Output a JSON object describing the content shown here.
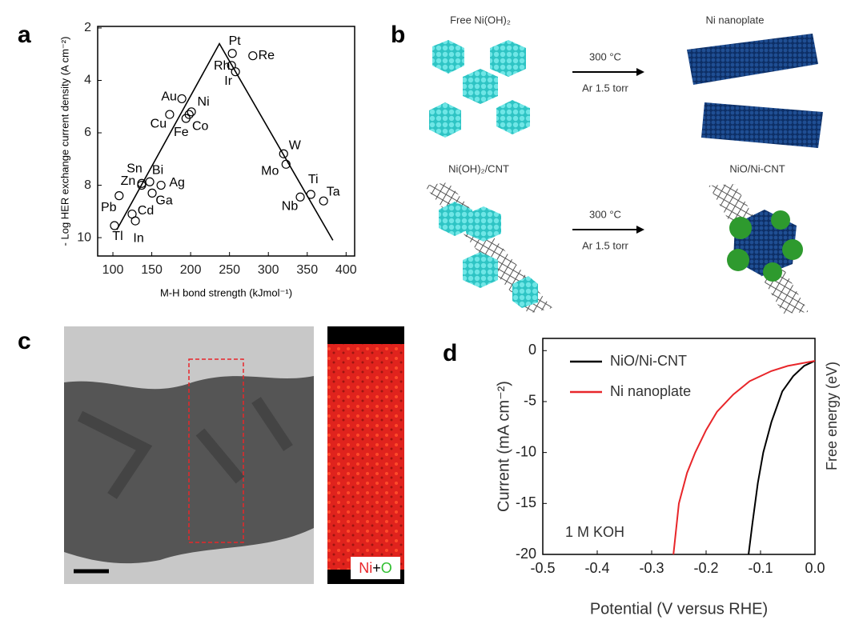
{
  "panels": {
    "a": "a",
    "b": "b",
    "c": "c",
    "d": "d"
  },
  "scheme": {
    "free": "Free Ni(OH)₂",
    "nanoplate": "Ni nanoplate",
    "temp_top": "300 °C",
    "gas_top": "Ar 1.5 torr",
    "cnt": "Ni(OH)₂/CNT",
    "nio": "NiO/Ni-CNT",
    "temp_bottom": "300 °C",
    "gas_bottom": "Ar 1.5 torr"
  },
  "map_legend": [
    "Ni",
    "+",
    "O"
  ],
  "chart_data": [
    {
      "type": "scatter",
      "xlabel": "M-H bond strength (kJmol⁻¹)",
      "ylabel": "- Log HER exchange current density (A cm⁻²)",
      "labels": [
        "Pt",
        "Re",
        "Rh",
        "Ir",
        "Au",
        "Ni",
        "Cu",
        "Co",
        "Fe",
        "W",
        "Mo",
        "Sn",
        "Bi",
        "Zn",
        "Ag",
        "Ga",
        "Pb",
        "Cd",
        "In",
        "Tl",
        "Ti",
        "Nb",
        "Ta"
      ],
      "x": [
        253.6,
        280,
        252.6,
        257.7,
        188.7,
        201,
        173,
        198,
        194,
        319.6,
        322.7,
        137.1,
        147.4,
        137,
        161.9,
        150.5,
        108,
        124.7,
        128.9,
        102,
        354.6,
        341,
        371
      ],
      "values": [
        2.97,
        3.06,
        3.43,
        3.67,
        4.7,
        5.2,
        5.3,
        5.3,
        5.45,
        6.8,
        7.2,
        7.93,
        7.87,
        8.0,
        8.0,
        8.3,
        8.4,
        9.1,
        9.36,
        9.54,
        8.35,
        8.45,
        8.6
      ],
      "trend": {
        "x": [
          105,
          237,
          383
        ],
        "values": [
          9.7,
          2.6,
          10.1
        ]
      },
      "xlim": [
        80.4,
        411
      ],
      "ylim": [
        10.7,
        1.94
      ],
      "xticks": [
        100,
        150,
        200,
        250,
        300,
        350,
        400
      ],
      "yticks": [
        2,
        4,
        6,
        8,
        10
      ]
    },
    {
      "type": "line",
      "xlabel": "Potential (V versus RHE)",
      "ylabel": "Current (mA cm⁻²)",
      "y2label": "Free energy (eV)",
      "annotation": "1 M KOH",
      "series": [
        {
          "name": "NiO/Ni-CNT",
          "color": "#000000",
          "x": [
            -0.122,
            -0.115,
            -0.105,
            -0.095,
            -0.08,
            -0.06,
            -0.04,
            -0.02,
            0
          ],
          "values": [
            -20,
            -17,
            -13,
            -10,
            -7,
            -4,
            -2.5,
            -1.5,
            -1
          ]
        },
        {
          "name": "Ni nanoplate",
          "color": "#e8262a",
          "x": [
            -0.26,
            -0.25,
            -0.235,
            -0.22,
            -0.2,
            -0.18,
            -0.15,
            -0.12,
            -0.08,
            -0.05,
            0
          ],
          "values": [
            -20,
            -15,
            -12,
            -10,
            -7.8,
            -6,
            -4.3,
            -3,
            -2,
            -1.5,
            -1
          ]
        }
      ],
      "xlim": [
        -0.5,
        0.0
      ],
      "ylim": [
        -20,
        1.2
      ],
      "xticks": [
        -0.5,
        -0.4,
        -0.3,
        -0.2,
        -0.1,
        {
          "value": 0,
          "label": "0.0"
        }
      ],
      "yticks": [
        0,
        -5,
        -10,
        -15,
        -20
      ]
    }
  ]
}
